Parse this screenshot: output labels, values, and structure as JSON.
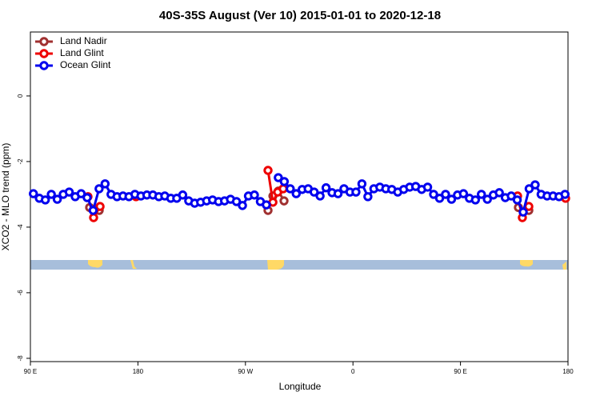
{
  "chart_data": {
    "type": "line",
    "title": "40S-35S August (Ver 10)   2015-01-01 to 2020-12-18",
    "x_label": "Longitude",
    "y_label": "XCO2 - MLO trend (ppm)",
    "xlim": [
      90,
      540
    ],
    "xticks": [
      {
        "value": 90,
        "label": "90 E"
      },
      180,
      {
        "value": 270,
        "label": "90 W"
      },
      {
        "value": 360,
        "label": "0"
      },
      {
        "value": 450,
        "label": "90 E"
      },
      {
        "value": 540,
        "label": "180"
      }
    ],
    "ylim": [
      -8.1,
      1.95
    ],
    "yticks": [
      0,
      -2,
      -4,
      -6,
      -8
    ],
    "legend": "top-left",
    "series": [
      {
        "name": "Land Nadir",
        "color": "#a03030",
        "x": [
          139.6,
          147.6,
          null,
          288.9,
          293,
          297.6,
          302.3,
          null,
          498.5,
          507.2
        ],
        "values": [
          -3.4,
          -3.49,
          null,
          -3.49,
          -3.05,
          -2.9,
          -3.2,
          null,
          -3.4,
          -3.49
        ]
      },
      {
        "name": "Land Glint",
        "color": "#ee0000",
        "x": [
          138.2,
          142.9,
          148.3,
          null,
          178.4,
          null,
          288.9,
          293,
          297,
          301.6,
          null,
          497.8,
          501.8,
          507.2,
          null,
          538
        ],
        "values": [
          -3.07,
          -3.71,
          -3.37,
          null,
          -3.07,
          null,
          -2.27,
          -3.24,
          -2.93,
          -2.83,
          null,
          -3.05,
          -3.71,
          -3.37,
          null,
          -3.12
        ]
      },
      {
        "name": "Ocean Glint",
        "color": "#0000ee",
        "x": [
          92.5,
          97.5,
          102.5,
          107.5,
          112.5,
          117.5,
          122.5,
          127.5,
          132.5,
          137.5,
          142.5,
          147.5,
          152.5,
          157.5,
          162.5,
          167.5,
          172.5,
          177.5,
          182.5,
          187.5,
          192.5,
          197.5,
          202.5,
          207.5,
          212.5,
          217.5,
          222.5,
          227.5,
          232.5,
          237.5,
          242.5,
          247.5,
          252.5,
          257.5,
          262.5,
          267.5,
          272.5,
          277.5,
          282.5,
          287.5,
          292.5,
          297.5,
          302.5,
          307.5,
          312.5,
          317.5,
          322.5,
          327.5,
          332.5,
          337.5,
          342.5,
          347.5,
          352.5,
          357.5,
          362.5,
          367.5,
          372.5,
          377.5,
          382.5,
          387.5,
          392.5,
          397.5,
          402.5,
          407.5,
          412.5,
          417.5,
          422.5,
          427.5,
          432.5,
          437.5,
          442.5,
          447.5,
          452.5,
          457.5,
          462.5,
          467.5,
          472.5,
          477.5,
          482.5,
          487.5,
          492.5,
          497.5,
          502.5,
          507.5,
          512.5,
          517.5,
          522.5,
          527.5,
          532.5,
          537.5
        ],
        "values": [
          -2.98,
          -3.12,
          -3.17,
          -3.0,
          -3.15,
          -3.0,
          -2.93,
          -3.07,
          -2.98,
          -3.1,
          -3.49,
          -2.83,
          -2.68,
          -3.0,
          -3.07,
          -3.05,
          -3.07,
          -3.0,
          -3.05,
          -3.02,
          -3.02,
          -3.07,
          -3.05,
          -3.12,
          -3.12,
          -3.02,
          -3.2,
          -3.27,
          -3.24,
          -3.2,
          -3.17,
          -3.22,
          -3.2,
          -3.15,
          -3.22,
          -3.34,
          -3.05,
          -3.02,
          -3.22,
          -3.32,
          null,
          -2.49,
          -2.61,
          -2.83,
          -2.98,
          -2.85,
          -2.83,
          -2.93,
          -3.05,
          -2.8,
          -2.95,
          -2.98,
          -2.83,
          -2.93,
          -2.93,
          -2.68,
          -3.07,
          -2.83,
          -2.78,
          -2.83,
          -2.85,
          -2.93,
          -2.85,
          -2.78,
          -2.76,
          -2.85,
          -2.78,
          -3.0,
          -3.12,
          -3.0,
          -3.15,
          -3.02,
          -2.98,
          -3.12,
          -3.17,
          -3.0,
          -3.15,
          -3.02,
          -2.95,
          -3.1,
          -3.05,
          -3.17,
          -3.54,
          -2.83,
          -2.71,
          -3.0,
          -3.05,
          -3.05,
          -3.07,
          -3.0
        ]
      }
    ]
  }
}
